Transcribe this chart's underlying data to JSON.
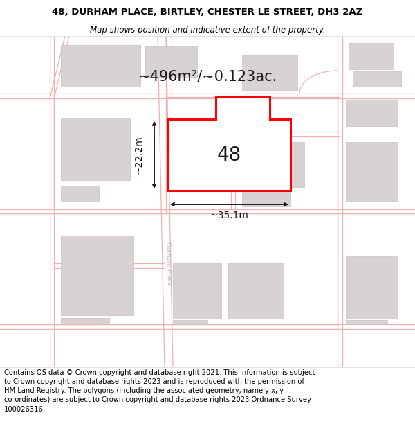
{
  "title_line1": "48, DURHAM PLACE, BIRTLEY, CHESTER LE STREET, DH3 2AZ",
  "title_line2": "Map shows position and indicative extent of the property.",
  "area_label": "~496m²/~0.123ac.",
  "width_label": "~35.1m",
  "height_label": "~22.2m",
  "number_label": "48",
  "footer_text": "Contains OS data © Crown copyright and database right 2021. This information is subject to Crown copyright and database rights 2023 and is reproduced with the permission of HM Land Registry. The polygons (including the associated geometry, namely x, y co-ordinates) are subject to Crown copyright and database rights 2023 Ordnance Survey 100026316.",
  "map_bg": "#faf7f7",
  "road_color": "#f0b0b0",
  "building_color": "#d8d2d2",
  "building_edge": "#c8c0c0",
  "main_poly_color": "#ff0000",
  "dim_color": "#111111",
  "title_fontsize": 9.5,
  "subtitle_fontsize": 8.5,
  "area_fontsize": 15,
  "number_fontsize": 20,
  "footer_fontsize": 7.2,
  "road_lw": 0.9,
  "prop_lw": 2.2
}
